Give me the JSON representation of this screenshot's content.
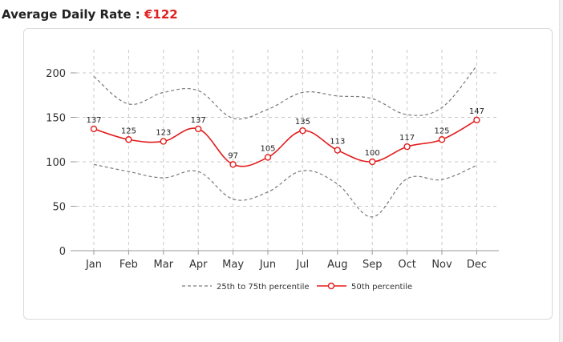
{
  "header": {
    "label": "Average Daily Rate : ",
    "value": "€122"
  },
  "colors": {
    "median": "#e31b1b",
    "percentile": "#7a7a7a",
    "grid": "#c8c8c8"
  },
  "chart_data": {
    "type": "line",
    "categories": [
      "Jan",
      "Feb",
      "Mar",
      "Apr",
      "May",
      "Jun",
      "Jul",
      "Aug",
      "Sep",
      "Oct",
      "Nov",
      "Dec"
    ],
    "ylim": [
      0,
      225
    ],
    "yticks": [
      0,
      50,
      100,
      150,
      200
    ],
    "grid": true,
    "legend_position": "bottom",
    "series": [
      {
        "name": "50th percentile",
        "style": "solid-markers",
        "labeled": true,
        "values": [
          137,
          125,
          123,
          137,
          97,
          105,
          135,
          113,
          100,
          117,
          125,
          147
        ]
      },
      {
        "name": "",
        "style": "dashed",
        "values": [
          196,
          165,
          178,
          180,
          149,
          159,
          178,
          174,
          171,
          153,
          161,
          208
        ]
      },
      {
        "name": "",
        "style": "dashed",
        "values": [
          97,
          89,
          82,
          89,
          58,
          66,
          90,
          75,
          38,
          81,
          80,
          96
        ]
      }
    ],
    "legend": [
      {
        "label": "25th to 75th percentile",
        "style": "dashed"
      },
      {
        "label": "50th percentile",
        "style": "solid-markers"
      }
    ]
  }
}
